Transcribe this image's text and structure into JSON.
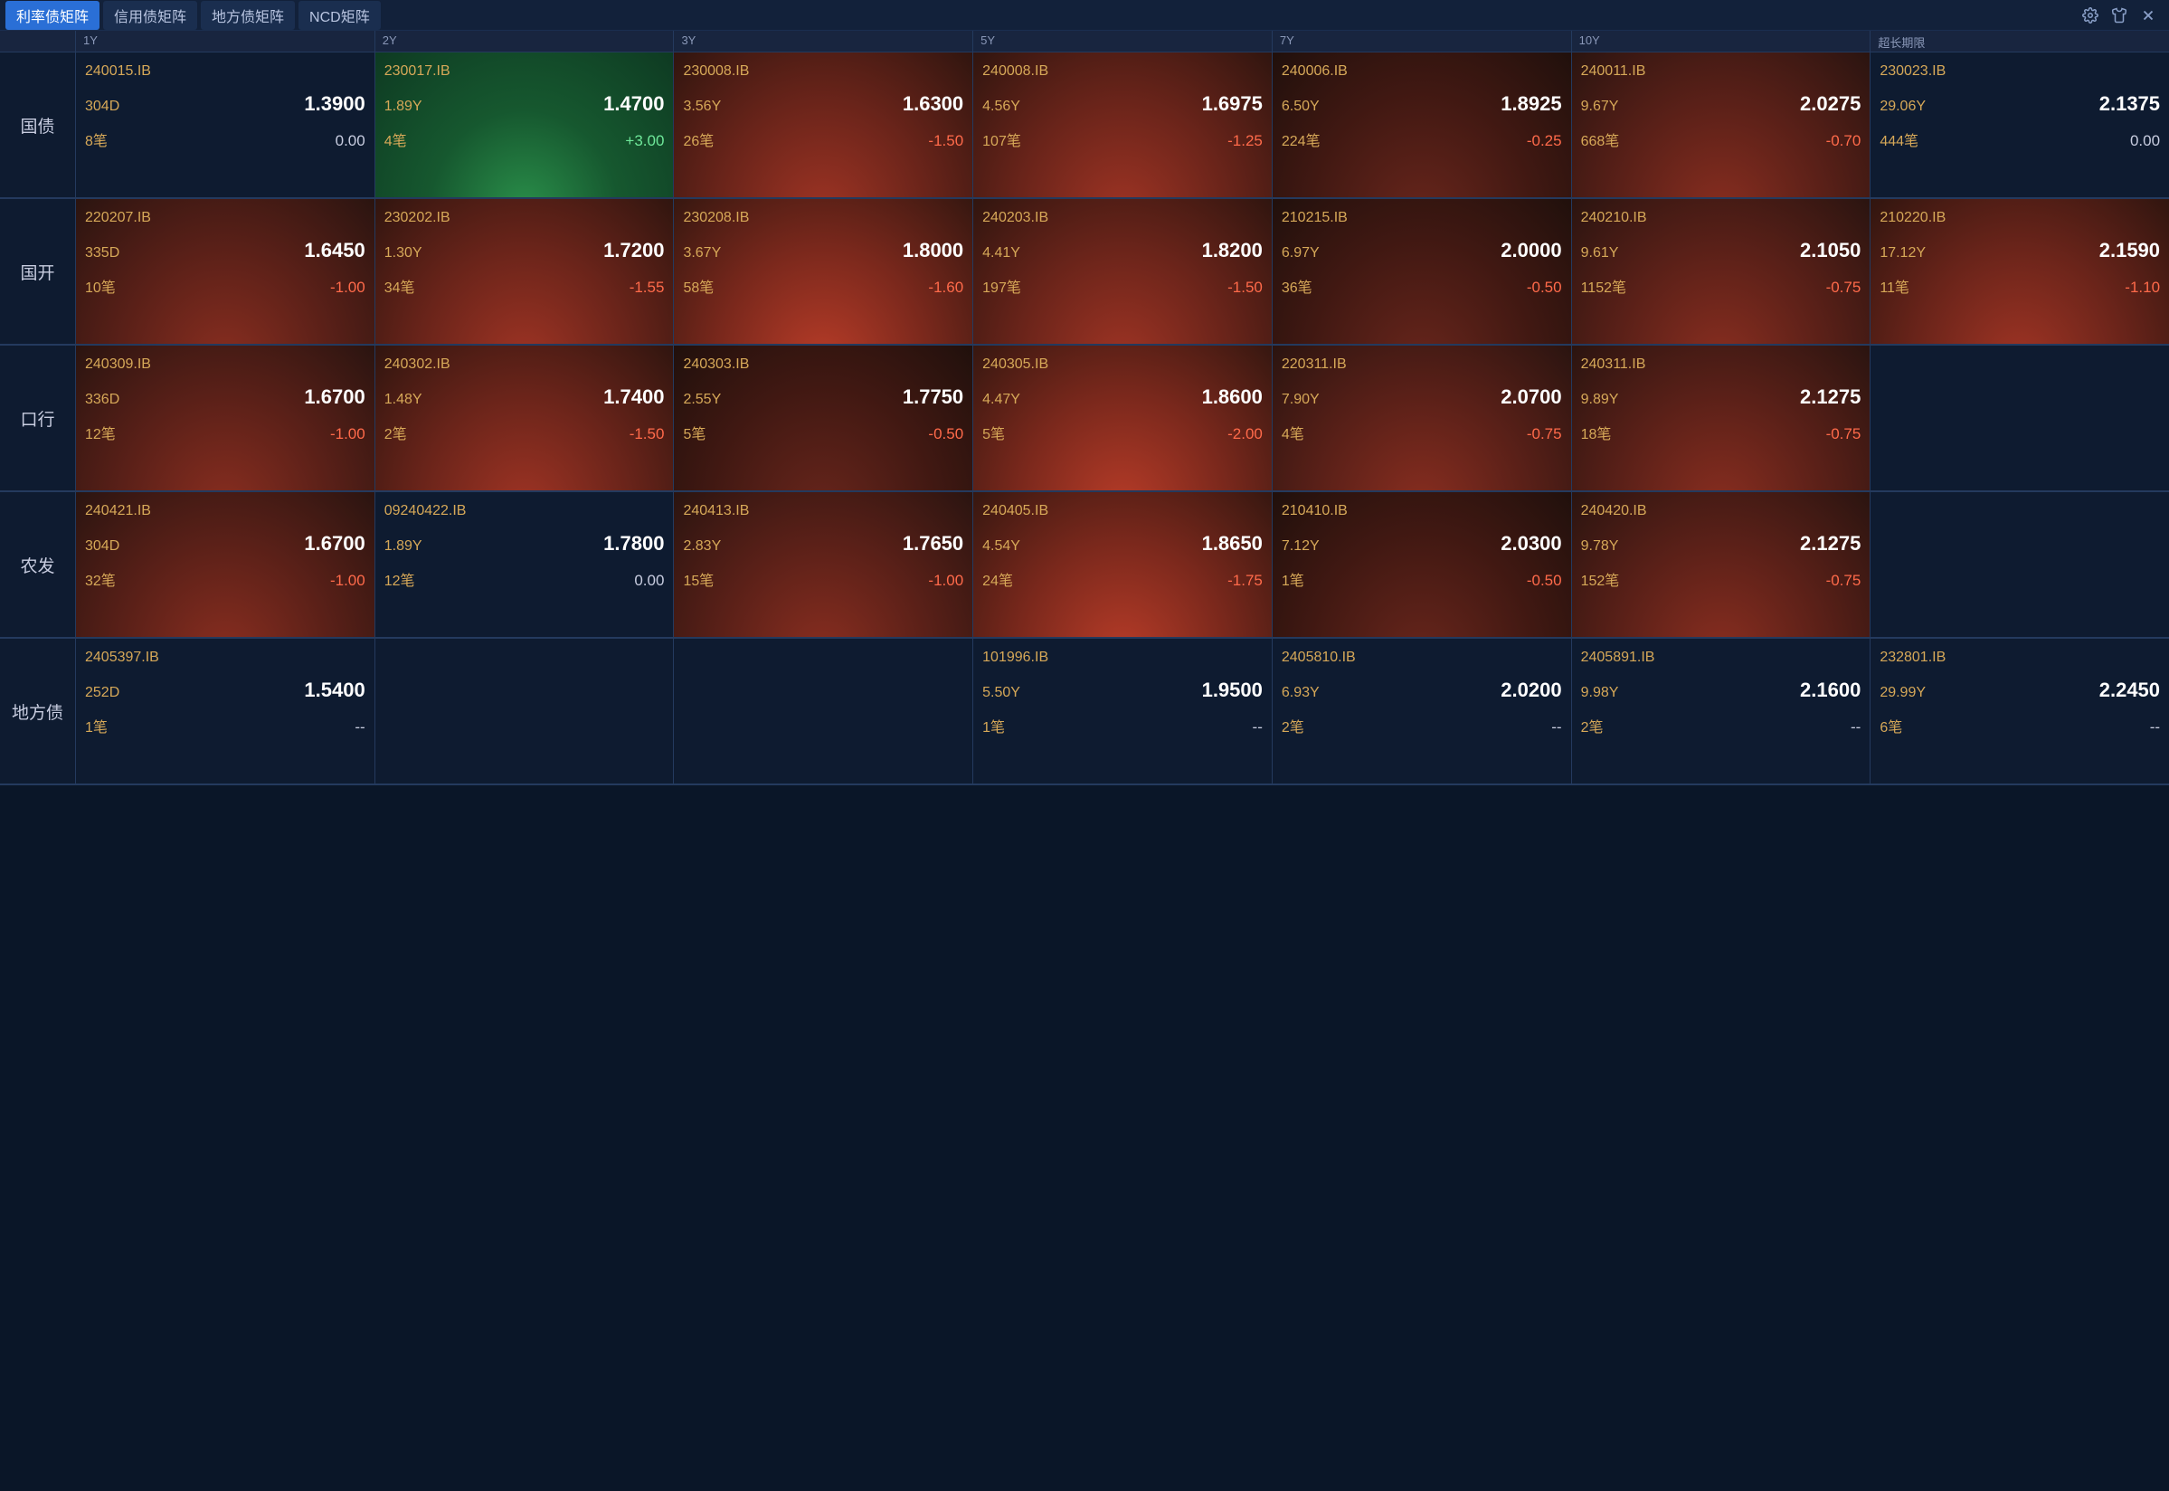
{
  "colors": {
    "bg": "#0a1628",
    "panel": "#0e1b30",
    "border": "#243a5e",
    "text": "#c8cde0",
    "muted": "#8a98b8",
    "accent": "#d6a858",
    "price": "#ffffff",
    "tab_active_bg": "#2a6fd6",
    "up_change": "#6fe89a",
    "down_change": "#ff6a4a",
    "up_grad": [
      "#2a8f4a",
      "#16582f",
      "#0e3a22"
    ],
    "down_grad": [
      "#b83c28",
      "#7a281c",
      "#361710"
    ]
  },
  "tabs": [
    {
      "label": "利率债矩阵",
      "active": true
    },
    {
      "label": "信用债矩阵",
      "active": false
    },
    {
      "label": "地方债矩阵",
      "active": false
    },
    {
      "label": "NCD矩阵",
      "active": false
    }
  ],
  "columns": [
    "1Y",
    "2Y",
    "3Y",
    "5Y",
    "7Y",
    "10Y",
    "超长期限"
  ],
  "rows": [
    {
      "label": "国债",
      "cells": [
        {
          "code": "240015.IB",
          "tenor": "304D",
          "price": "1.3900",
          "vol": "8笔",
          "change": "0.00",
          "dir": "neutral"
        },
        {
          "code": "230017.IB",
          "tenor": "1.89Y",
          "price": "1.4700",
          "vol": "4笔",
          "change": "+3.00",
          "dir": "up"
        },
        {
          "code": "230008.IB",
          "tenor": "3.56Y",
          "price": "1.6300",
          "vol": "26笔",
          "change": "-1.50",
          "dir": "down-2"
        },
        {
          "code": "240008.IB",
          "tenor": "4.56Y",
          "price": "1.6975",
          "vol": "107笔",
          "change": "-1.25",
          "dir": "down-2"
        },
        {
          "code": "240006.IB",
          "tenor": "6.50Y",
          "price": "1.8925",
          "vol": "224笔",
          "change": "-0.25",
          "dir": "down-0"
        },
        {
          "code": "240011.IB",
          "tenor": "9.67Y",
          "price": "2.0275",
          "vol": "668笔",
          "change": "-0.70",
          "dir": "down-1"
        },
        {
          "code": "230023.IB",
          "tenor": "29.06Y",
          "price": "2.1375",
          "vol": "444笔",
          "change": "0.00",
          "dir": "neutral"
        }
      ]
    },
    {
      "label": "国开",
      "cells": [
        {
          "code": "220207.IB",
          "tenor": "335D",
          "price": "1.6450",
          "vol": "10笔",
          "change": "-1.00",
          "dir": "down-1"
        },
        {
          "code": "230202.IB",
          "tenor": "1.30Y",
          "price": "1.7200",
          "vol": "34笔",
          "change": "-1.55",
          "dir": "down-2"
        },
        {
          "code": "230208.IB",
          "tenor": "3.67Y",
          "price": "1.8000",
          "vol": "58笔",
          "change": "-1.60",
          "dir": "down-3"
        },
        {
          "code": "240203.IB",
          "tenor": "4.41Y",
          "price": "1.8200",
          "vol": "197笔",
          "change": "-1.50",
          "dir": "down-2"
        },
        {
          "code": "210215.IB",
          "tenor": "6.97Y",
          "price": "2.0000",
          "vol": "36笔",
          "change": "-0.50",
          "dir": "down-0"
        },
        {
          "code": "240210.IB",
          "tenor": "9.61Y",
          "price": "2.1050",
          "vol": "1152笔",
          "change": "-0.75",
          "dir": "down-1"
        },
        {
          "code": "210220.IB",
          "tenor": "17.12Y",
          "price": "2.1590",
          "vol": "11笔",
          "change": "-1.10",
          "dir": "down-2"
        }
      ]
    },
    {
      "label": "口行",
      "cells": [
        {
          "code": "240309.IB",
          "tenor": "336D",
          "price": "1.6700",
          "vol": "12笔",
          "change": "-1.00",
          "dir": "down-1"
        },
        {
          "code": "240302.IB",
          "tenor": "1.48Y",
          "price": "1.7400",
          "vol": "2笔",
          "change": "-1.50",
          "dir": "down-2"
        },
        {
          "code": "240303.IB",
          "tenor": "2.55Y",
          "price": "1.7750",
          "vol": "5笔",
          "change": "-0.50",
          "dir": "down-0"
        },
        {
          "code": "240305.IB",
          "tenor": "4.47Y",
          "price": "1.8600",
          "vol": "5笔",
          "change": "-2.00",
          "dir": "down-3"
        },
        {
          "code": "220311.IB",
          "tenor": "7.90Y",
          "price": "2.0700",
          "vol": "4笔",
          "change": "-0.75",
          "dir": "down-1"
        },
        {
          "code": "240311.IB",
          "tenor": "9.89Y",
          "price": "2.1275",
          "vol": "18笔",
          "change": "-0.75",
          "dir": "down-1"
        },
        {
          "empty": true
        }
      ]
    },
    {
      "label": "农发",
      "cells": [
        {
          "code": "240421.IB",
          "tenor": "304D",
          "price": "1.6700",
          "vol": "32笔",
          "change": "-1.00",
          "dir": "down-1"
        },
        {
          "code": "09240422.IB",
          "tenor": "1.89Y",
          "price": "1.7800",
          "vol": "12笔",
          "change": "0.00",
          "dir": "neutral"
        },
        {
          "code": "240413.IB",
          "tenor": "2.83Y",
          "price": "1.7650",
          "vol": "15笔",
          "change": "-1.00",
          "dir": "down-1"
        },
        {
          "code": "240405.IB",
          "tenor": "4.54Y",
          "price": "1.8650",
          "vol": "24笔",
          "change": "-1.75",
          "dir": "down-3"
        },
        {
          "code": "210410.IB",
          "tenor": "7.12Y",
          "price": "2.0300",
          "vol": "1笔",
          "change": "-0.50",
          "dir": "down-0"
        },
        {
          "code": "240420.IB",
          "tenor": "9.78Y",
          "price": "2.1275",
          "vol": "152笔",
          "change": "-0.75",
          "dir": "down-1"
        },
        {
          "empty": true
        }
      ]
    },
    {
      "label": "地方债",
      "cells": [
        {
          "code": "2405397.IB",
          "tenor": "252D",
          "price": "1.5400",
          "vol": "1笔",
          "change": "--",
          "dir": "neutral",
          "dash": true
        },
        {
          "empty": true
        },
        {
          "empty": true
        },
        {
          "code": "101996.IB",
          "tenor": "5.50Y",
          "price": "1.9500",
          "vol": "1笔",
          "change": "--",
          "dir": "neutral",
          "dash": true
        },
        {
          "code": "2405810.IB",
          "tenor": "6.93Y",
          "price": "2.0200",
          "vol": "2笔",
          "change": "--",
          "dir": "neutral",
          "dash": true
        },
        {
          "code": "2405891.IB",
          "tenor": "9.98Y",
          "price": "2.1600",
          "vol": "2笔",
          "change": "--",
          "dir": "neutral",
          "dash": true
        },
        {
          "code": "232801.IB",
          "tenor": "29.99Y",
          "price": "2.2450",
          "vol": "6笔",
          "change": "--",
          "dir": "neutral",
          "dash": true
        }
      ]
    }
  ]
}
